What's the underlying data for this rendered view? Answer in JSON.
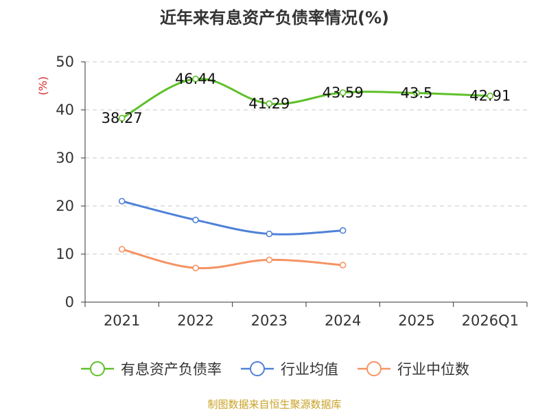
{
  "title": "近年来有息资产负债率情况(%)",
  "source": "制图数据来自恒生聚源数据库",
  "colors": {
    "series_0": "#5ec02a",
    "series_1": "#4f81d6",
    "series_2": "#f59363",
    "unit_label": "#d62728"
  },
  "chart_data": {
    "type": "line",
    "title": "近年来有息资产负债率情况(%)",
    "ylabel": "(%)",
    "xlabel": "",
    "categories": [
      "2021",
      "2022",
      "2023",
      "2024",
      "2025",
      "2026Q1"
    ],
    "ylim": [
      0,
      50
    ],
    "yticks": [
      0,
      10,
      20,
      30,
      40,
      50
    ],
    "grid": true,
    "legend_position": "bottom",
    "series": [
      {
        "name": "有息资产负债率",
        "values": [
          38.27,
          46.44,
          41.29,
          43.59,
          43.5,
          42.91
        ],
        "labels": [
          "38.27",
          "46.44",
          "41.29",
          "43.59",
          "43.5",
          "42.91"
        ]
      },
      {
        "name": "行业均值",
        "values": [
          21.0,
          17.1,
          14.2,
          14.9,
          null,
          null
        ]
      },
      {
        "name": "行业中位数",
        "values": [
          11.0,
          7.1,
          8.8,
          7.7,
          null,
          null
        ]
      }
    ]
  }
}
